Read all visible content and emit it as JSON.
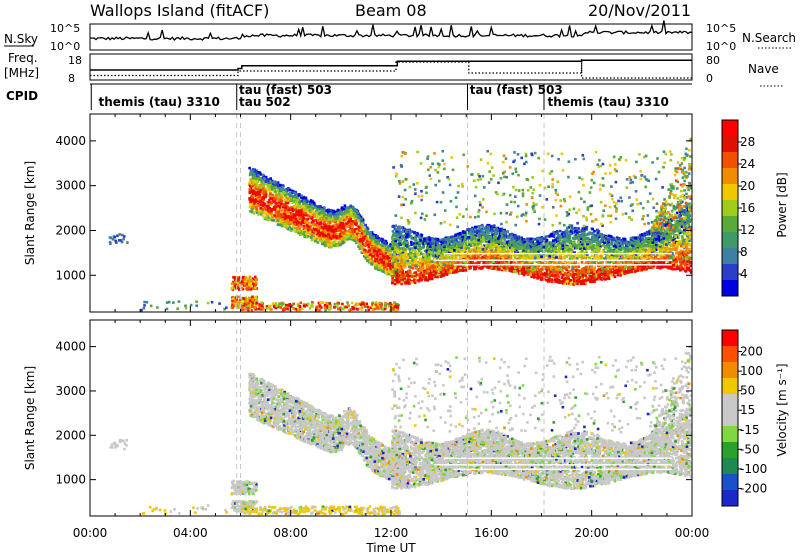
{
  "header": {
    "station": "Wallops Island (fitACF)",
    "beam": "Beam 08",
    "date": "20/Nov/2011"
  },
  "status_panel": {
    "nsky_label": "N.Sky",
    "nsky_ticks": [
      "10^5",
      "10^0"
    ],
    "nsearch_label": "N.Search",
    "nsearch_ticks": [
      "10^5",
      "10^0"
    ],
    "freq_label": "Freq.",
    "freq_unit": "[MHz]",
    "freq_ticks": [
      "18",
      "8"
    ],
    "nave_label": "Nave",
    "nave_ticks": [
      "80",
      "0"
    ],
    "cpid_label": "CPID",
    "cpid_entries": [
      {
        "text": "themis (tau) 3310",
        "hour": 0.3,
        "row": 0
      },
      {
        "text": "tau (fast) 503",
        "hour": 5.9,
        "row": -1
      },
      {
        "text": "tau 502",
        "hour": 5.9,
        "row": 0
      },
      {
        "text": "tau (fast) 503",
        "hour": 15.1,
        "row": -1
      },
      {
        "text": "themis (tau) 3310",
        "hour": 18.2,
        "row": 0
      }
    ],
    "cpid_boundaries": [
      5.85,
      15.05,
      18.1
    ],
    "freq_steps": [
      [
        0,
        11.8
      ],
      [
        5.9,
        12.5
      ],
      [
        6.05,
        13.8
      ],
      [
        12.2,
        13.8
      ],
      [
        12.25,
        16.0
      ],
      [
        19.55,
        16.0
      ],
      [
        19.6,
        16.5
      ],
      [
        24,
        16.5
      ]
    ]
  },
  "chart_data": [
    {
      "type": "heatmap",
      "name": "power",
      "ylabel": "Slant Range [km]",
      "xlabel": "",
      "x_ticks": [
        "00:00",
        "04:00",
        "08:00",
        "12:00",
        "16:00",
        "20:00",
        "00:00"
      ],
      "x_range_hours": [
        0,
        24
      ],
      "y_ticks": [
        1000,
        2000,
        3000,
        4000
      ],
      "ylim": [
        180,
        4600
      ],
      "colorbar_label": "Power [dB]",
      "colorbar_ticks": [
        4,
        8,
        12,
        16,
        20,
        24,
        28
      ],
      "colorbar_range": [
        0,
        32
      ],
      "colors": [
        "#0000e0",
        "#2a3fc8",
        "#3f7fa0",
        "#3f9a6a",
        "#5aaa3a",
        "#9fcc1a",
        "#f0c800",
        "#f08c00",
        "#f05000",
        "#e01000",
        "#ff0000"
      ]
    },
    {
      "type": "heatmap",
      "name": "velocity",
      "ylabel": "Slant Range [km]",
      "xlabel": "Time UT",
      "x_ticks": [
        "00:00",
        "04:00",
        "08:00",
        "12:00",
        "16:00",
        "20:00",
        "00:00"
      ],
      "x_range_hours": [
        0,
        24
      ],
      "y_ticks": [
        1000,
        2000,
        3000,
        4000
      ],
      "ylim": [
        180,
        4600
      ],
      "colorbar_label": "Velocity [m s⁻¹]",
      "colorbar_ticks": [
        "200",
        "100",
        "50",
        "15",
        "-15",
        "-50",
        "-100",
        "-200"
      ],
      "colors": [
        "#1a28c8",
        "#1a50c8",
        "#1e8a52",
        "#2ca02c",
        "#7fd83f",
        "#c8c8c8",
        "#c8c8c8",
        "#f0c800",
        "#f08c00",
        "#ff5000",
        "#ff0000"
      ]
    }
  ]
}
